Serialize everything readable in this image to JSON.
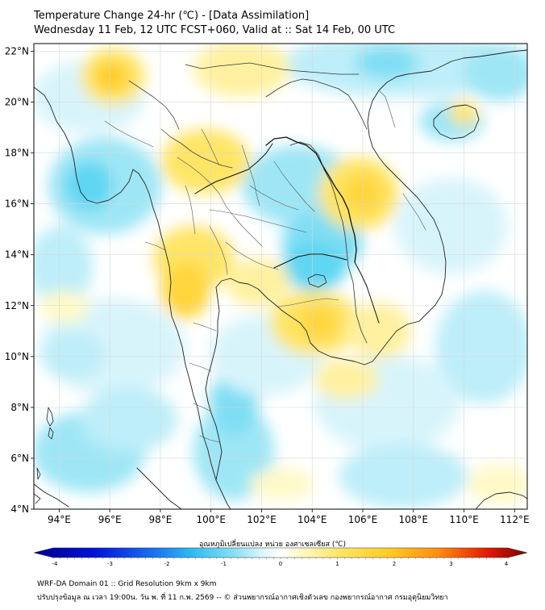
{
  "header": {
    "title": "Temperature Change 24-hr (℃) - [Data Assimilation]",
    "subtitle": "Wednesday 11 Feb, 12 UTC FCST+060, Valid at :: Sat 14 Feb, 00 UTC"
  },
  "map": {
    "lat_labels": [
      "22°N",
      "20°N",
      "18°N",
      "16°N",
      "14°N",
      "12°N",
      "10°N",
      "8°N",
      "6°N",
      "4°N"
    ],
    "lon_labels": [
      "94°E",
      "96°E",
      "98°E",
      "100°E",
      "102°E",
      "104°E",
      "106°E",
      "108°E",
      "110°E",
      "112°E"
    ],
    "lat_range": [
      4,
      22.3
    ],
    "lon_range": [
      93,
      112.5
    ],
    "colors": {
      "warm_light": "#fff9c8",
      "warm": "#ffe566",
      "warm_strong": "#ffcc22",
      "cool_light": "#d8f4fb",
      "cool": "#9ee6f6",
      "cool_strong": "#5fd6f2",
      "land_line": "#222222",
      "border": "#666666",
      "grid": "#d8d8d8"
    }
  },
  "colorbar": {
    "label": "อุณหภูมิเปลี่ยนแปลง หน่วย องศาเซลเซียส (℃)",
    "min": -4,
    "max": 4,
    "ticks": [
      "-4",
      "-3",
      "-2",
      "-1",
      "0",
      "1",
      "2",
      "3",
      "4"
    ]
  },
  "footer": {
    "line1": "WRF-DA Domain 01 :: Grid Resolution 9km x 9km",
    "line2": "ปรับปรุงข้อมูล ณ เวลา 19:00น. วัน พ. ที่ 11 ก.พ. 2569 -- © ส่วนพยากรณ์อากาศเชิงตัวเลข กองพยากรณ์อากาศ กรมอุตุนิยมวิทยา"
  }
}
